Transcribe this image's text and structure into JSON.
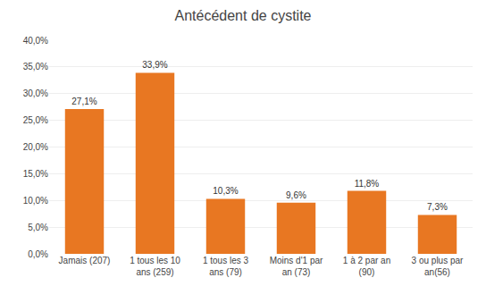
{
  "chart_data": {
    "type": "bar",
    "title": "Antécédent de cystite",
    "categories": [
      "Jamais (207)",
      "1 tous les 10\nans (259)",
      "1 tous les 3\nans (79)",
      "Moins d'1 par\nan (73)",
      "1 à 2 par an\n(90)",
      "3 ou plus par\nan(56)"
    ],
    "values": [
      27.1,
      33.9,
      10.3,
      9.6,
      11.8,
      7.3
    ],
    "value_labels": [
      "27,1%",
      "33,9%",
      "10,3%",
      "9,6%",
      "11,8%",
      "7,3%"
    ],
    "data_labels": true,
    "color": "#E87722",
    "ylim": [
      0,
      40
    ],
    "yticks": [
      {
        "value": 0,
        "label": "0,0%"
      },
      {
        "value": 5,
        "label": "5,0%"
      },
      {
        "value": 10,
        "label": "10,0%"
      },
      {
        "value": 15,
        "label": "15,0%"
      },
      {
        "value": 20,
        "label": "20,0%"
      },
      {
        "value": 25,
        "label": "25,0%"
      },
      {
        "value": 30,
        "label": "30,0%"
      },
      {
        "value": 35,
        "label": "35,0%"
      },
      {
        "value": 40,
        "label": "40,0%"
      }
    ],
    "grid": true
  }
}
